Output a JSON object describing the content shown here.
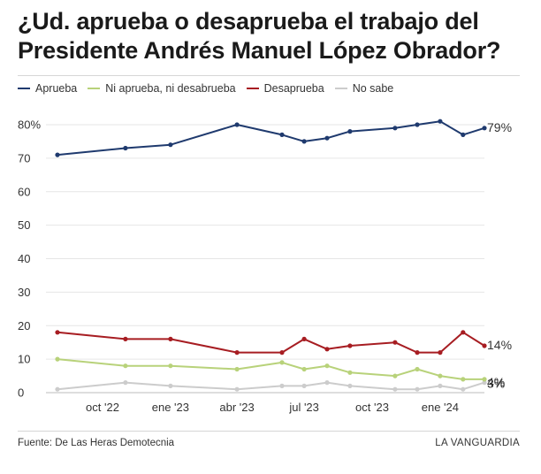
{
  "title": "¿Ud. aprueba o desaprueba el trabajo del Presidente Andrés Manuel López Obrador?",
  "source": "Fuente: De Las Heras Demotecnia",
  "brand": "LA VANGUARDIA",
  "colors": {
    "Aprueba": "#1f3a6e",
    "Ni aprueba, ni desabrueba": "#b8d27a",
    "Desaprueba": "#a71d22",
    "No sabe": "#cccccc"
  },
  "chart_data": {
    "type": "line",
    "title": "¿Ud. aprueba o desaprueba el trabajo del Presidente Andrés Manuel López Obrador?",
    "x": [
      "2022-08-01",
      "2022-11-01",
      "2023-01-01",
      "2023-04-01",
      "2023-06-01",
      "2023-07-01",
      "2023-08-01",
      "2023-09-01",
      "2023-11-01",
      "2023-12-01",
      "2024-01-01",
      "2024-02-01",
      "2024-03-01"
    ],
    "x_range": [
      "2022-07-20",
      "2024-03-01"
    ],
    "x_ticks": [
      {
        "date": "2022-10-01",
        "label": "oct '22"
      },
      {
        "date": "2023-01-01",
        "label": "ene '23"
      },
      {
        "date": "2023-04-01",
        "label": "abr '23"
      },
      {
        "date": "2023-07-01",
        "label": "jul '23"
      },
      {
        "date": "2023-10-01",
        "label": "oct '23"
      },
      {
        "date": "2024-01-01",
        "label": "ene '24"
      }
    ],
    "ylim": [
      0,
      80
    ],
    "y_ticks": [
      0,
      10,
      20,
      30,
      40,
      50,
      60,
      70,
      80
    ],
    "y_tick_labels": [
      "0",
      "10",
      "20",
      "30",
      "40",
      "50",
      "60",
      "70",
      "80%"
    ],
    "grid": "horizontal",
    "legend": "top-left",
    "series": [
      {
        "name": "Aprueba",
        "values": [
          71,
          73,
          74,
          80,
          77,
          75,
          76,
          78,
          79,
          80,
          81,
          77,
          79
        ],
        "end_label": "79%"
      },
      {
        "name": "Ni aprueba, ni desabrueba",
        "values": [
          10,
          8,
          8,
          7,
          9,
          7,
          8,
          6,
          5,
          7,
          5,
          4,
          4
        ],
        "end_label": "4%"
      },
      {
        "name": "Desaprueba",
        "values": [
          18,
          16,
          16,
          12,
          12,
          16,
          13,
          14,
          15,
          12,
          12,
          18,
          14
        ],
        "end_label": "14%"
      },
      {
        "name": "No sabe",
        "values": [
          1,
          3,
          2,
          1,
          2,
          2,
          3,
          2,
          1,
          1,
          2,
          1,
          3
        ],
        "end_label": "3%"
      }
    ]
  }
}
